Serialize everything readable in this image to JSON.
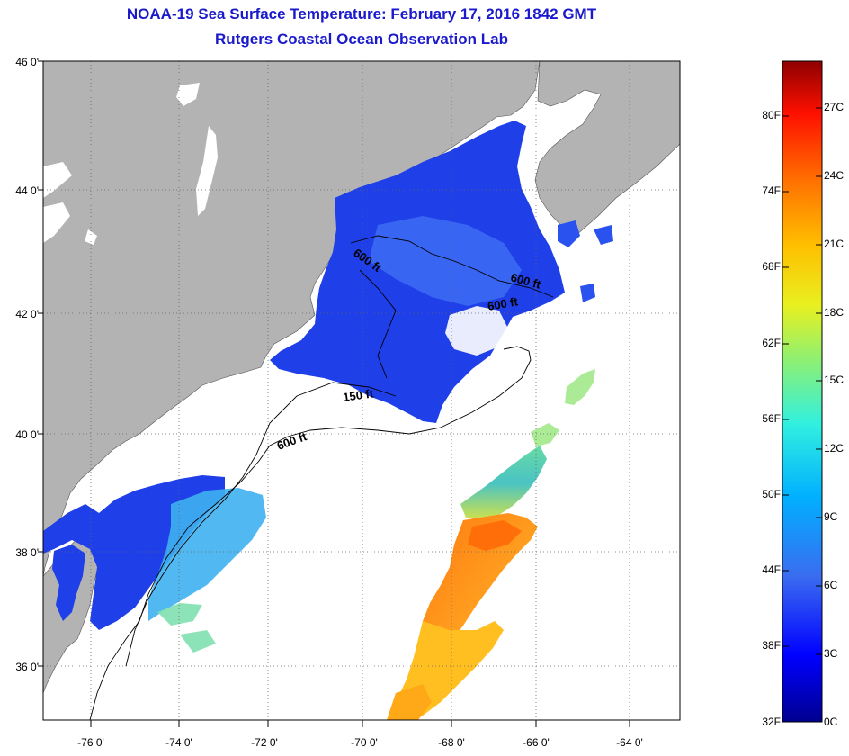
{
  "title": "NOAA-19 Sea Surface Temperature:  February 17, 2016 1842 GMT",
  "subtitle": "Rutgers Coastal Ocean Observation Lab",
  "lat_labels": [
    "46 0'",
    "44 0'",
    "42 0'",
    "40 0'",
    "38 0'",
    "36 0'"
  ],
  "lon_labels": [
    "-76 0'",
    "-74 0'",
    "-72 0'",
    "-70 0'",
    "-68 0'",
    "-66 0'",
    "-64 0'"
  ],
  "contour_labels": [
    "600 ft",
    "600 ft",
    "600 ft",
    "150 ft",
    "600 ft"
  ],
  "colorbar": {
    "fahrenheit_labels": [
      "80F",
      "74F",
      "68F",
      "62F",
      "56F",
      "50F",
      "44F",
      "38F",
      "32F"
    ],
    "celsius_labels": [
      "27C",
      "24C",
      "21C",
      "18C",
      "15C",
      "12C",
      "9C",
      "6C",
      "3C",
      "0C"
    ]
  },
  "colors": {
    "title": "#1a1acc",
    "land": "#b3b3b3",
    "ocean_no_data": "#ffffff",
    "grid": "#555555"
  },
  "colormap": [
    "#00008f",
    "#0000ff",
    "#3c6cf0",
    "#00b0ff",
    "#30f0e0",
    "#90f070",
    "#e8f020",
    "#ffc000",
    "#ff7000",
    "#ff1000",
    "#8f0000"
  ]
}
